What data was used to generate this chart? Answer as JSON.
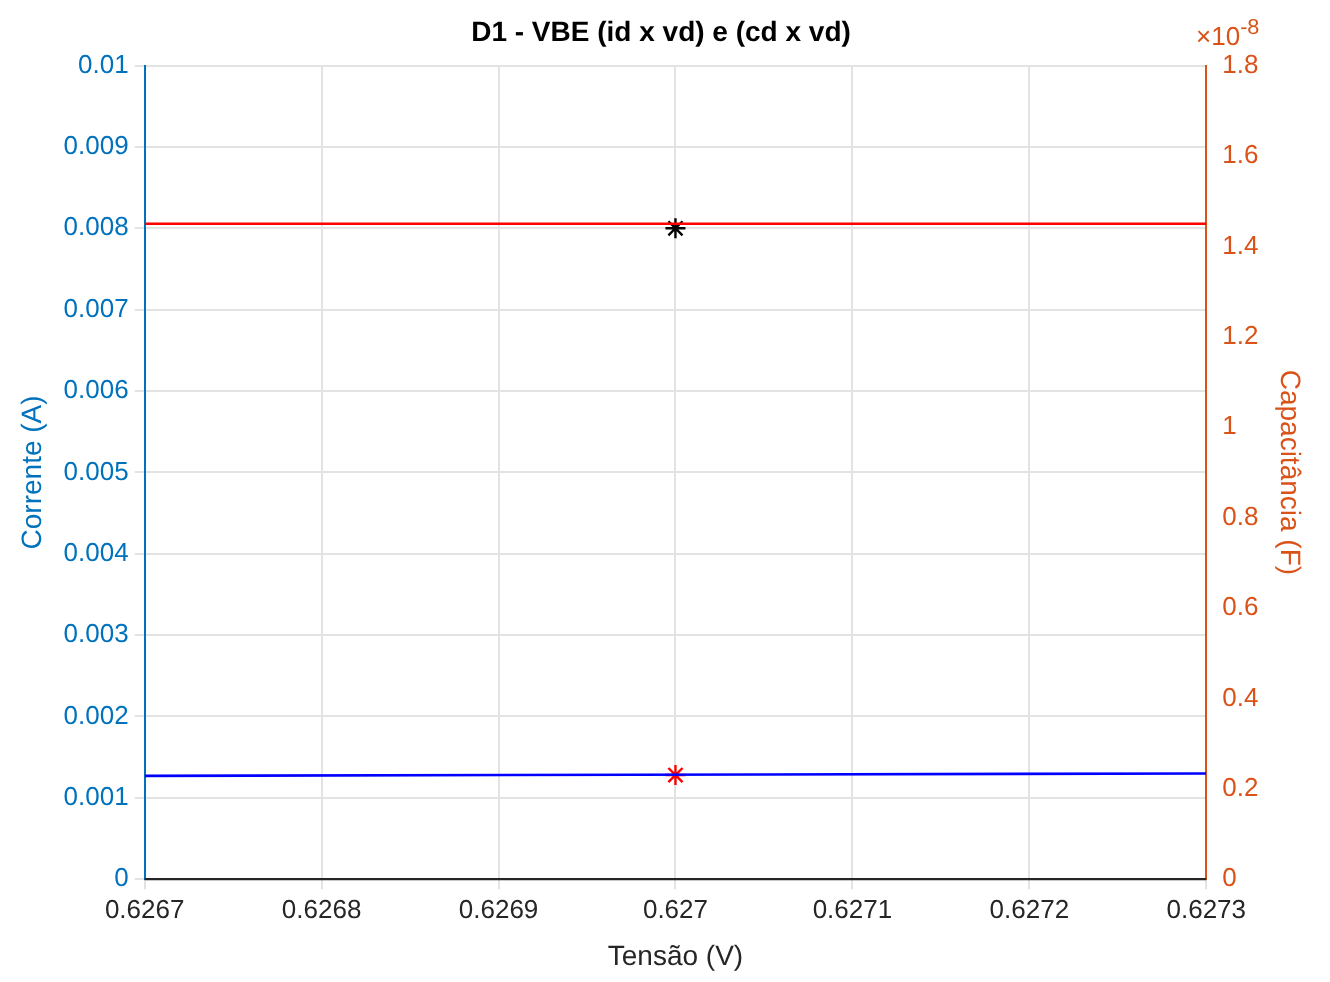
{
  "chart_data": {
    "type": "line",
    "title": "D1 - VBE (id x vd) e (cd x vd)",
    "xlabel": "Tensão (V)",
    "ylabel": "Corrente (A)",
    "y2label": "Capacitância (F)",
    "x": [
      0.6267,
      0.6273
    ],
    "series": [
      {
        "color": "#0000ff",
        "values": [
          0.00127,
          0.0013
        ]
      },
      {
        "color": "#ff0000",
        "values": [
          1.45,
          1.45
        ],
        "axis": "y2"
      },
      {
        "type": "scatter",
        "color": "#000000",
        "x": [
          0.627
        ],
        "values": [
          0.008
        ],
        "marker": "cross"
      },
      {
        "type": "scatter",
        "color": "#ff0000",
        "x": [
          0.627
        ],
        "values": [
          0.00128
        ],
        "marker": "cross"
      }
    ],
    "xlim": [
      0.6267,
      0.6273
    ],
    "xticks": [
      0.6267,
      0.6268,
      0.6269,
      0.627,
      0.6271,
      0.6272,
      0.6273
    ],
    "ylim": [
      0,
      0.01
    ],
    "yticks": [
      0,
      0.001,
      0.002,
      0.003,
      0.004,
      0.005,
      0.006,
      0.007,
      0.008,
      0.009,
      0.01
    ],
    "y2lim": [
      0,
      1.8
    ],
    "y2ticks": [
      0,
      0.2,
      0.4,
      0.6,
      0.8,
      1,
      1.2,
      1.4,
      1.6,
      1.8
    ],
    "annotations": [
      "×10$^{-8}$"
    ],
    "grid": true,
    "marker": "none",
    "line_style": "solid"
  }
}
